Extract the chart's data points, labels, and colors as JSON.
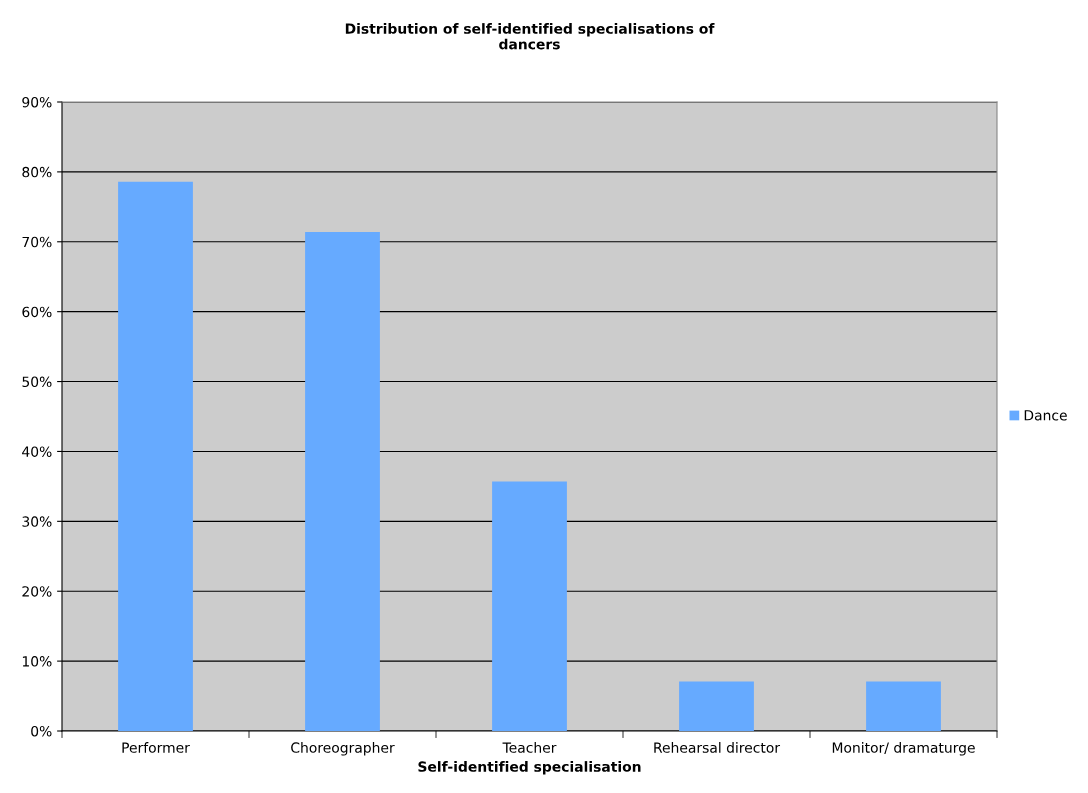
{
  "chart_data": {
    "type": "bar",
    "title": "Distribution of self-identified specialisations of\ndancers",
    "xlabel": "Self-identified specialisation",
    "categories": [
      "Performer",
      "Choreographer",
      "Teacher",
      "Rehearsal director",
      "Monitor/ dramaturge"
    ],
    "series": [
      {
        "name": "Dance",
        "color": "#66aaff",
        "values": [
          78.6,
          71.4,
          35.7,
          7.1,
          7.1
        ]
      }
    ],
    "ylim": [
      0,
      90
    ],
    "yticks": [
      {
        "value": 0,
        "label": "0%"
      },
      {
        "value": 10,
        "label": "10%"
      },
      {
        "value": 20,
        "label": "20%"
      },
      {
        "value": 30,
        "label": "30%"
      },
      {
        "value": 40,
        "label": "40%"
      },
      {
        "value": 50,
        "label": "50%"
      },
      {
        "value": 60,
        "label": "60%"
      },
      {
        "value": 70,
        "label": "70%"
      },
      {
        "value": 80,
        "label": "80%"
      },
      {
        "value": 90,
        "label": "90%"
      }
    ],
    "grid": "y",
    "legend": "right"
  }
}
